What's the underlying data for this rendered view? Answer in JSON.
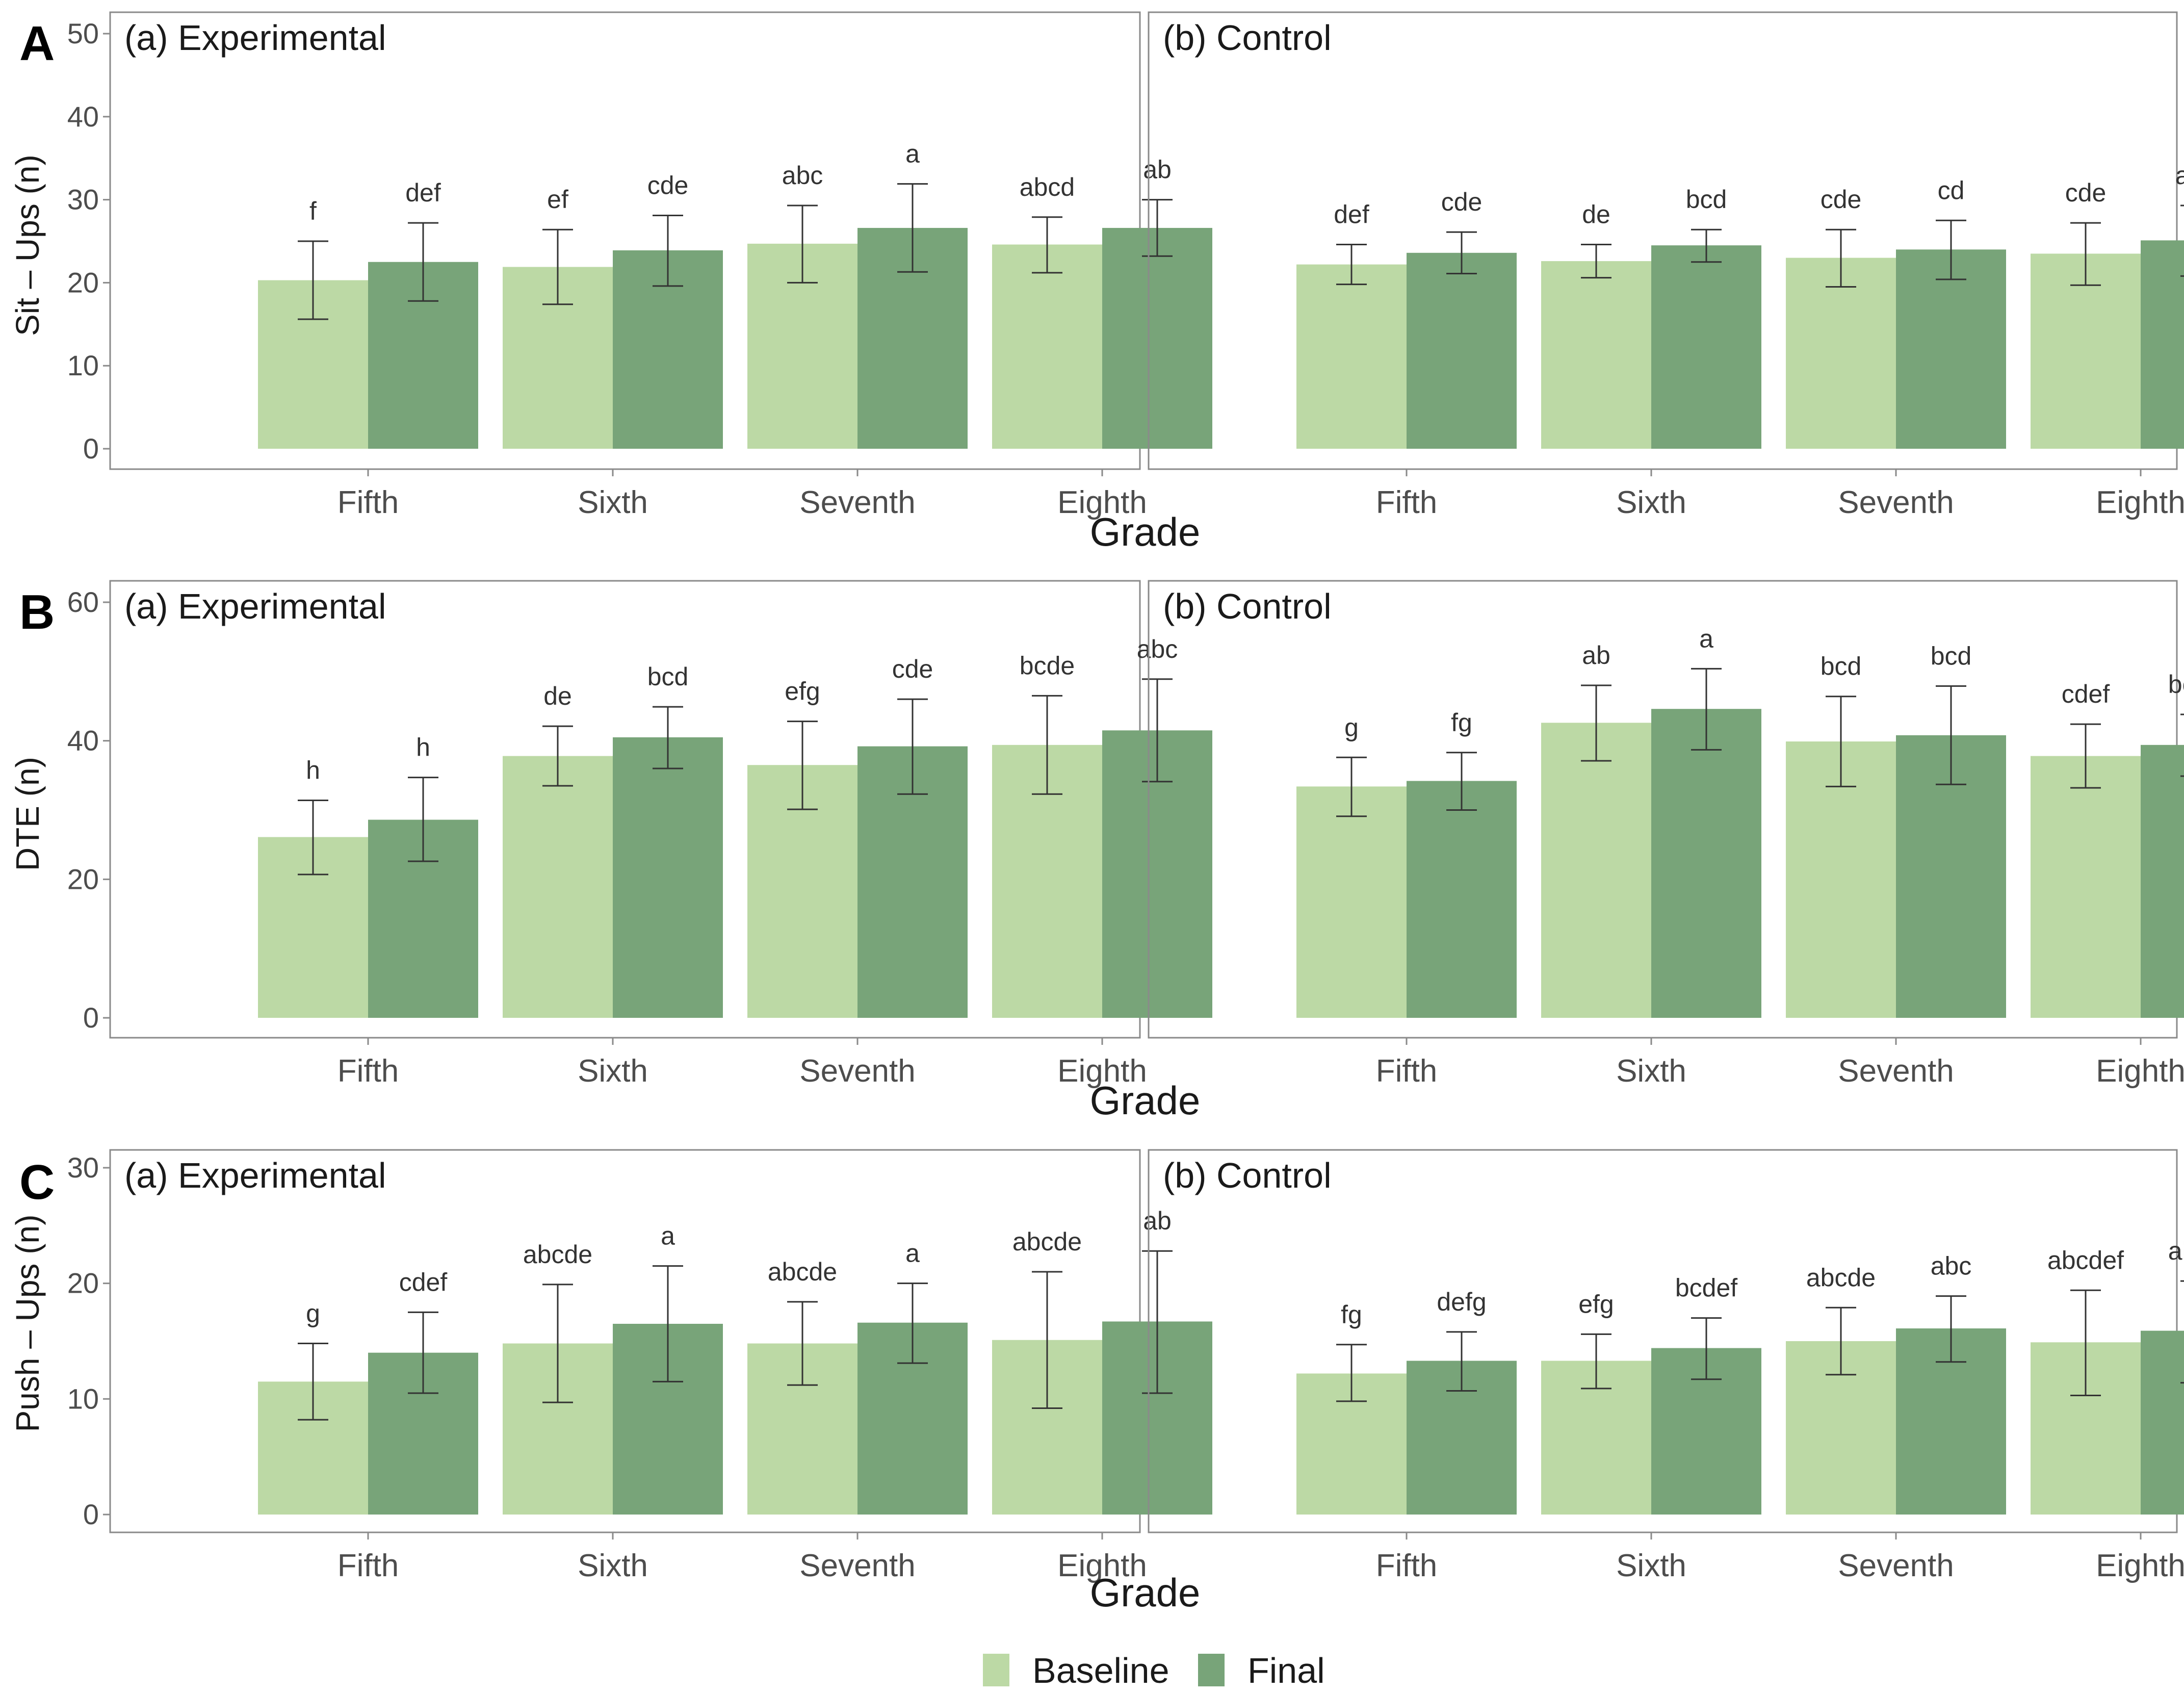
{
  "colors": {
    "baseline": "#bcd9a5",
    "final": "#78a479",
    "errorbar": "#333333",
    "border": "#8a8a8a"
  },
  "x_title": "Grade",
  "legend": {
    "baseline_label": "Baseline",
    "final_label": "Final",
    "position": "bottom-center"
  },
  "chart_data": [
    {
      "type": "bar",
      "panel": "A",
      "ylabel": "Sit – Ups  (n)",
      "xlabel": "Grade",
      "ylim": [
        0,
        50
      ],
      "yticks": [
        0,
        10,
        20,
        30,
        40,
        50
      ],
      "categories": [
        "Fifth",
        "Sixth",
        "Seventh",
        "Eighth"
      ],
      "facets": [
        {
          "title": "(a) Experimental",
          "series": [
            {
              "name": "Baseline",
              "values": [
                20.3,
                21.9,
                24.7,
                24.6
              ],
              "err_low": [
                15.6,
                17.4,
                20.0,
                21.2
              ],
              "err_high": [
                25.0,
                26.4,
                29.3,
                27.9
              ],
              "labels": [
                "f",
                "ef",
                "abc",
                "abcd"
              ]
            },
            {
              "name": "Final",
              "values": [
                22.5,
                23.9,
                26.6,
                26.6
              ],
              "err_low": [
                17.8,
                19.6,
                21.3,
                23.2
              ],
              "err_high": [
                27.2,
                28.1,
                31.9,
                30.0
              ],
              "labels": [
                "def",
                "cde",
                "a",
                "ab"
              ]
            }
          ]
        },
        {
          "title": "(b) Control",
          "series": [
            {
              "name": "Baseline",
              "values": [
                22.2,
                22.6,
                23.0,
                23.5
              ],
              "err_low": [
                19.8,
                20.6,
                19.5,
                19.7
              ],
              "err_high": [
                24.6,
                24.6,
                26.4,
                27.2
              ],
              "labels": [
                "def",
                "de",
                "cde",
                "cde"
              ]
            },
            {
              "name": "Final",
              "values": [
                23.6,
                24.5,
                24.0,
                25.1
              ],
              "err_low": [
                21.1,
                22.5,
                20.4,
                20.8
              ],
              "err_high": [
                26.1,
                26.4,
                27.5,
                29.3
              ],
              "labels": [
                "cde",
                "bcd",
                "cd",
                "abc"
              ]
            }
          ]
        }
      ]
    },
    {
      "type": "bar",
      "panel": "B",
      "ylabel": "DTE  (n)",
      "xlabel": "Grade",
      "ylim": [
        0,
        60
      ],
      "yticks": [
        0,
        20,
        40,
        60
      ],
      "categories": [
        "Fifth",
        "Sixth",
        "Seventh",
        "Eighth"
      ],
      "facets": [
        {
          "title": "(a) Experimental",
          "series": [
            {
              "name": "Baseline",
              "values": [
                26.1,
                37.8,
                36.5,
                39.4
              ],
              "err_low": [
                20.7,
                33.5,
                30.1,
                32.3
              ],
              "err_high": [
                31.4,
                42.1,
                42.8,
                46.5
              ],
              "labels": [
                "h",
                "de",
                "efg",
                "bcde"
              ]
            },
            {
              "name": "Final",
              "values": [
                28.6,
                40.5,
                39.2,
                41.5
              ],
              "err_low": [
                22.6,
                36.0,
                32.3,
                34.1
              ],
              "err_high": [
                34.7,
                44.9,
                46.0,
                48.9
              ],
              "labels": [
                "h",
                "bcd",
                "cde",
                "abc"
              ]
            }
          ]
        },
        {
          "title": "(b) Control",
          "series": [
            {
              "name": "Baseline",
              "values": [
                33.4,
                42.6,
                39.9,
                37.8
              ],
              "err_low": [
                29.1,
                37.1,
                33.4,
                33.2
              ],
              "err_high": [
                37.6,
                48.0,
                46.4,
                42.4
              ],
              "labels": [
                "g",
                "ab",
                "bcd",
                "cdef"
              ]
            },
            {
              "name": "Final",
              "values": [
                34.2,
                44.6,
                40.8,
                39.4
              ],
              "err_low": [
                30.0,
                38.7,
                33.7,
                34.9
              ],
              "err_high": [
                38.3,
                50.4,
                47.9,
                43.8
              ],
              "labels": [
                "fg",
                "a",
                "bcd",
                "bcde"
              ]
            }
          ]
        }
      ]
    },
    {
      "type": "bar",
      "panel": "C",
      "ylabel": "Push – Ups  (n)",
      "xlabel": "Grade",
      "ylim": [
        0,
        30
      ],
      "yticks": [
        0,
        10,
        20,
        30
      ],
      "categories": [
        "Fifth",
        "Sixth",
        "Seventh",
        "Eighth"
      ],
      "facets": [
        {
          "title": "(a) Experimental",
          "series": [
            {
              "name": "Baseline",
              "values": [
                11.5,
                14.8,
                14.8,
                15.1
              ],
              "err_low": [
                8.2,
                9.7,
                11.2,
                9.2
              ],
              "err_high": [
                14.8,
                19.9,
                18.4,
                21.0
              ],
              "labels": [
                "g",
                "abcde",
                "abcde",
                "abcde"
              ]
            },
            {
              "name": "Final",
              "values": [
                14.0,
                16.5,
                16.6,
                16.7
              ],
              "err_low": [
                10.5,
                11.5,
                13.1,
                10.5
              ],
              "err_high": [
                17.5,
                21.5,
                20.0,
                22.8
              ],
              "labels": [
                "cdef",
                "a",
                "a",
                "ab"
              ]
            }
          ]
        },
        {
          "title": "(b) Control",
          "series": [
            {
              "name": "Baseline",
              "values": [
                12.2,
                13.3,
                15.0,
                14.9
              ],
              "err_low": [
                9.8,
                10.9,
                12.1,
                10.3
              ],
              "err_high": [
                14.7,
                15.6,
                17.9,
                19.4
              ],
              "labels": [
                "fg",
                "efg",
                "abcde",
                "abcdef"
              ]
            },
            {
              "name": "Final",
              "values": [
                13.3,
                14.4,
                16.1,
                15.9
              ],
              "err_low": [
                10.7,
                11.7,
                13.2,
                11.4
              ],
              "err_high": [
                15.8,
                17.0,
                18.9,
                20.2
              ],
              "labels": [
                "defg",
                "bcdef",
                "abc",
                "abcd"
              ]
            }
          ]
        }
      ]
    }
  ]
}
